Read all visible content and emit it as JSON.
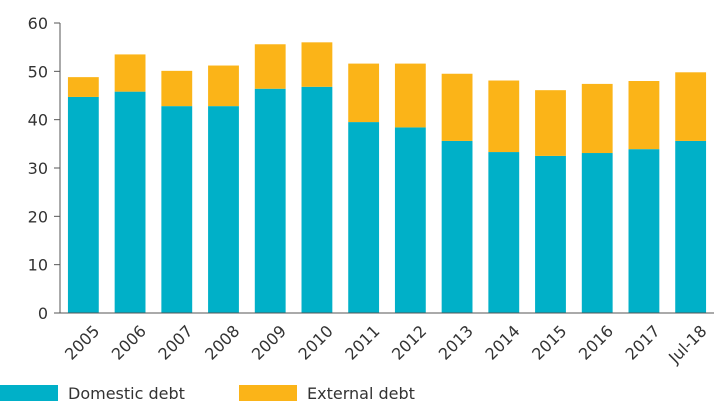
{
  "chart_data": {
    "type": "bar",
    "stacked": true,
    "categories": [
      "2005",
      "2006",
      "2007",
      "2008",
      "2009",
      "2010",
      "2011",
      "2012",
      "2013",
      "2014",
      "2015",
      "2016",
      "2017",
      "Jul-18"
    ],
    "series": [
      {
        "name": "Domestic debt",
        "color": "#00B0C8",
        "values": [
          44.7,
          45.8,
          42.8,
          42.8,
          46.4,
          46.8,
          39.5,
          38.4,
          35.6,
          33.3,
          32.5,
          33.1,
          33.9,
          35.6
        ]
      },
      {
        "name": "External debt",
        "color": "#FBB418",
        "values": [
          4.1,
          7.7,
          7.3,
          8.4,
          9.2,
          9.2,
          12.1,
          13.2,
          13.9,
          14.8,
          13.6,
          14.3,
          14.1,
          14.2
        ]
      }
    ],
    "ylim": [
      0,
      60
    ],
    "yticks": [
      0,
      10,
      20,
      30,
      40,
      50,
      60
    ],
    "grid": false,
    "legend_position": "bottom-left"
  }
}
